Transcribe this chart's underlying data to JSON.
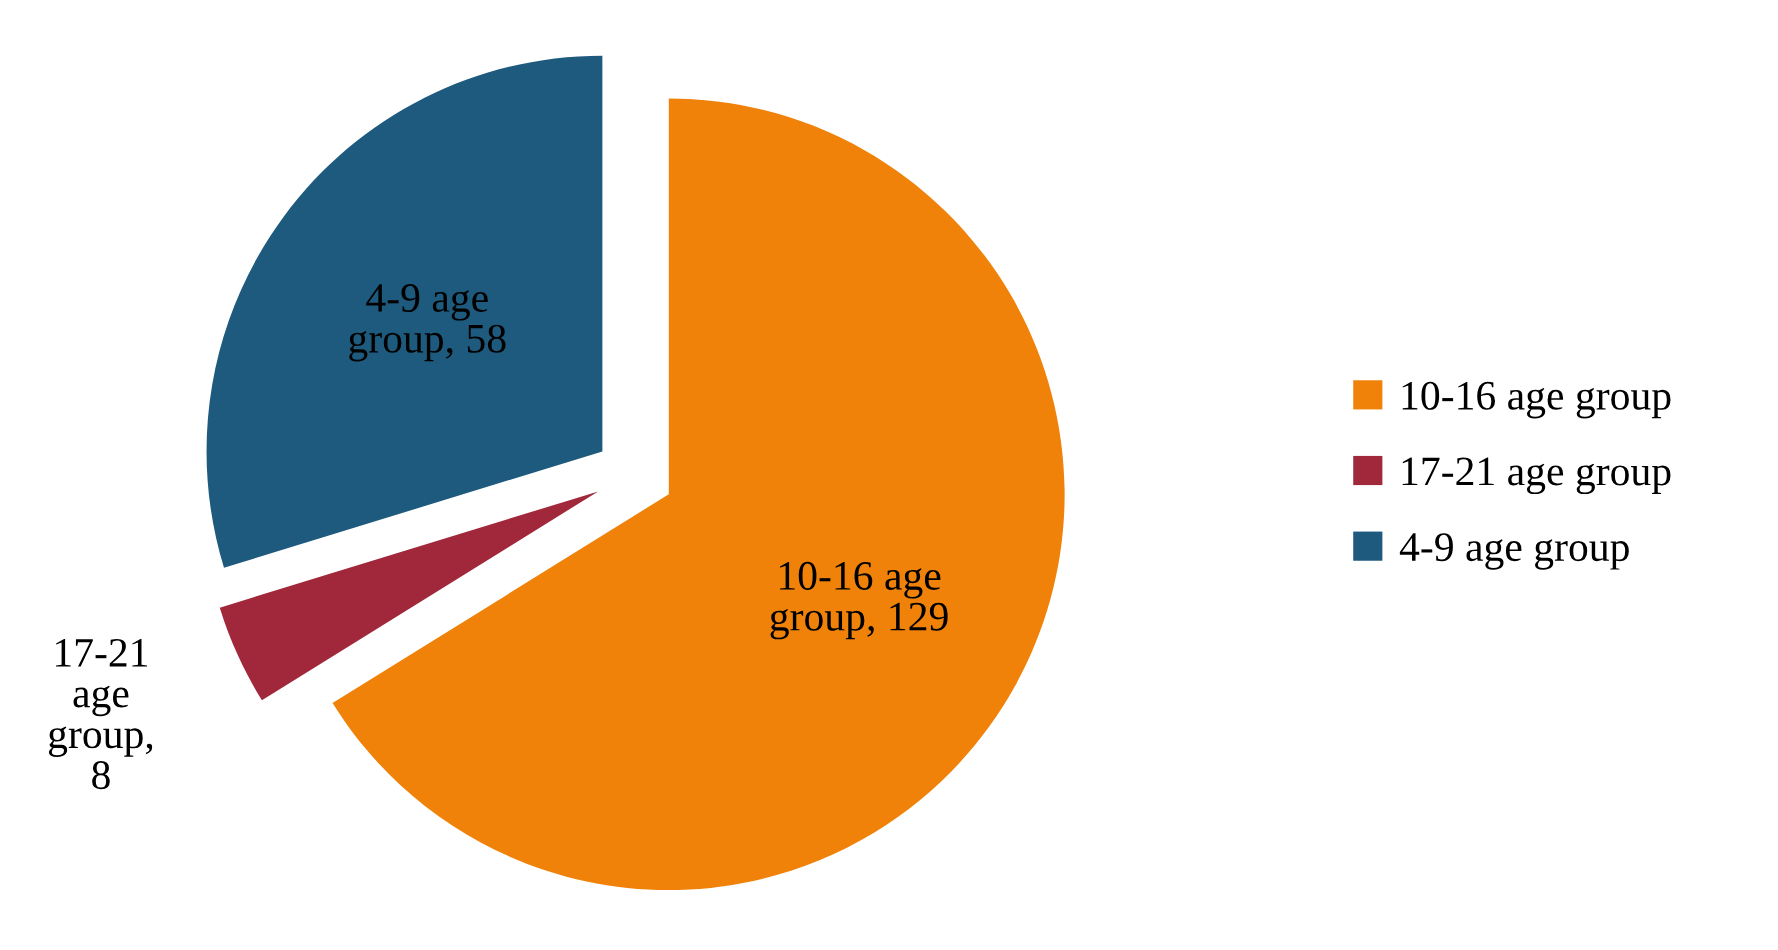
{
  "chart_data": {
    "type": "pie",
    "categories": [
      "10-16 age group",
      "17-21 age group",
      "4-9 age group"
    ],
    "values": [
      129,
      8,
      58
    ],
    "colors": [
      "#f0820a",
      "#a0283a",
      "#1e5a7d"
    ],
    "value_labels": [
      "10-16 age group, 129",
      "17-21 age group, 8",
      "4-9 age group, 58"
    ],
    "legend": "right"
  }
}
